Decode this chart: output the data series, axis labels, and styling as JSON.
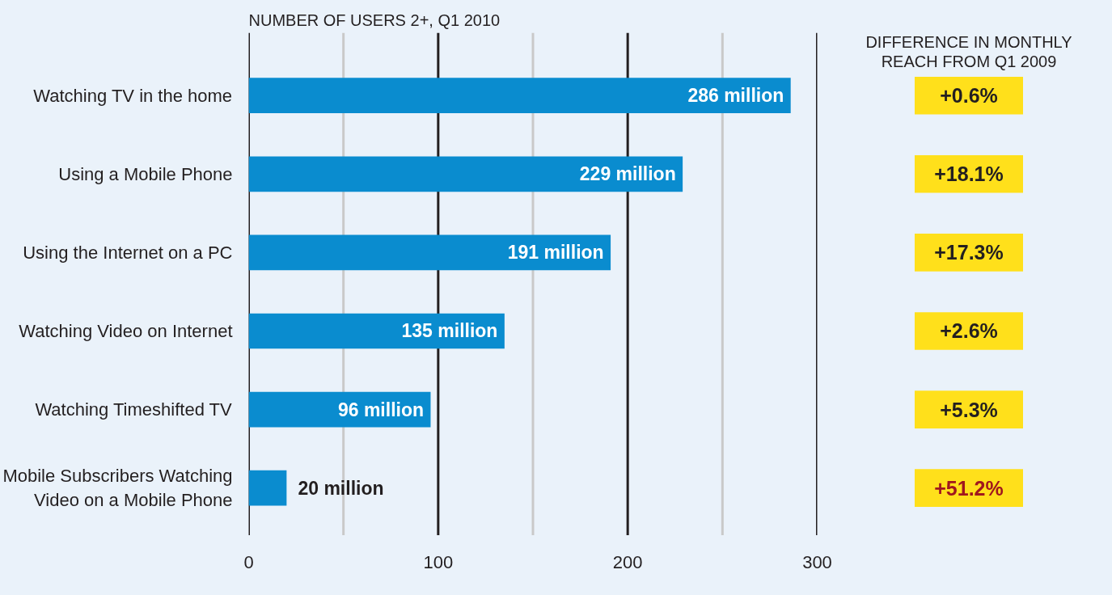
{
  "chart_data": [
    {
      "type": "bar",
      "orientation": "horizontal",
      "title": "NUMBER OF USERS 2+, Q1 2010",
      "categories": [
        "Watching TV in the home",
        "Using a Mobile Phone",
        "Using the Internet on a PC",
        "Watching Video on Internet",
        "Watching Timeshifted TV",
        "Mobile Subscribers Watching Video on a Mobile Phone"
      ],
      "values": [
        286,
        229,
        191,
        135,
        96,
        20
      ],
      "value_labels": [
        "286 million",
        "229 million",
        "191 million",
        "135 million",
        "96 million",
        "20 million"
      ],
      "color": "#0a8ccf",
      "xlim": [
        0,
        300
      ],
      "xticks": [
        0,
        {
          "value": 50,
          "label": null
        },
        100,
        {
          "value": 150,
          "label": null
        },
        200,
        {
          "value": 250,
          "label": null
        },
        300
      ],
      "grid": "x"
    },
    {
      "type": "other",
      "title": "DIFFERENCE IN MONTHLY REACH FROM Q1 2009",
      "annotations": [
        "+0.6%",
        "+18.1%",
        "+17.3%",
        "+2.6%",
        "+5.3%",
        "+51.2%"
      ],
      "colors": [
        "#231f20",
        "#231f20",
        "#231f20",
        "#231f20",
        "#231f20",
        "#a0171e"
      ]
    }
  ]
}
